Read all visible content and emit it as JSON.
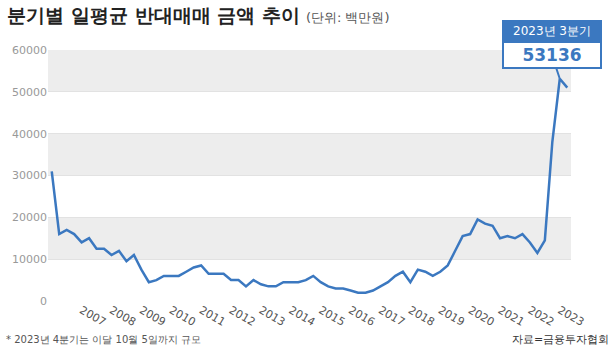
{
  "chart_data": {
    "type": "line",
    "title": "분기별 일평균 반대매매 금액 추이",
    "subtitle": "(단위: 백만원)",
    "categories": [
      null,
      null,
      null,
      null,
      "2007",
      null,
      null,
      null,
      "2008",
      null,
      null,
      null,
      "2009",
      null,
      null,
      null,
      "2010",
      null,
      null,
      null,
      "2011",
      null,
      null,
      null,
      "2012",
      null,
      null,
      null,
      "2013",
      null,
      null,
      null,
      "2014",
      null,
      null,
      null,
      "2015",
      null,
      null,
      null,
      "2016",
      null,
      null,
      null,
      "2017",
      null,
      null,
      null,
      "2018",
      null,
      null,
      null,
      "2019",
      null,
      null,
      null,
      "2020",
      null,
      null,
      null,
      "2021",
      null,
      null,
      null,
      "2022",
      null,
      null,
      null,
      "2023",
      null
    ],
    "values": [
      31000,
      16000,
      17000,
      16000,
      14000,
      15000,
      12500,
      12500,
      11000,
      12000,
      9500,
      11000,
      7500,
      4500,
      5000,
      6000,
      6000,
      6000,
      7000,
      8000,
      8500,
      6500,
      6500,
      6500,
      5000,
      5000,
      3500,
      5000,
      4000,
      3500,
      3500,
      4500,
      4500,
      4500,
      5000,
      6000,
      4500,
      3500,
      3000,
      3000,
      2500,
      2000,
      2000,
      2500,
      3500,
      4500,
      6000,
      7000,
      4500,
      7500,
      7000,
      6000,
      7000,
      8500,
      12000,
      15500,
      16000,
      19500,
      18500,
      18000,
      15000,
      15500,
      15000,
      16000,
      14000,
      11500,
      14500,
      38000,
      53136,
      51000
    ],
    "color": "#3b78c0",
    "ylim": [
      0,
      60000
    ],
    "yticks": [
      0,
      10000,
      20000,
      30000,
      40000,
      50000,
      60000
    ],
    "grid": true,
    "annotation": {
      "text": "2023년 3분기",
      "value": 53136
    },
    "note": "* 2023년 4분기는 이달 10월 5일까지 규모",
    "source": "자료=금융투자협회"
  }
}
